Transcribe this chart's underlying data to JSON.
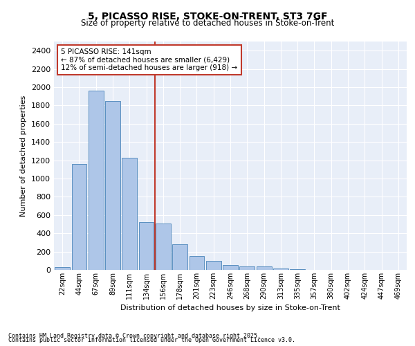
{
  "title1": "5, PICASSO RISE, STOKE-ON-TRENT, ST3 7GF",
  "title2": "Size of property relative to detached houses in Stoke-on-Trent",
  "xlabel": "Distribution of detached houses by size in Stoke-on-Trent",
  "ylabel": "Number of detached properties",
  "categories": [
    "22sqm",
    "44sqm",
    "67sqm",
    "89sqm",
    "111sqm",
    "134sqm",
    "156sqm",
    "178sqm",
    "201sqm",
    "223sqm",
    "246sqm",
    "268sqm",
    "290sqm",
    "313sqm",
    "335sqm",
    "357sqm",
    "380sqm",
    "402sqm",
    "424sqm",
    "447sqm",
    "469sqm"
  ],
  "values": [
    30,
    1160,
    1960,
    1850,
    1230,
    520,
    510,
    280,
    155,
    95,
    50,
    38,
    35,
    12,
    5,
    3,
    2,
    2,
    2,
    2,
    2
  ],
  "bar_color_normal": "#aec6e8",
  "bar_edge_color": "#5a8fc0",
  "vline_index": 5,
  "annotation_title": "5 PICASSO RISE: 141sqm",
  "annotation_line1": "← 87% of detached houses are smaller (6,429)",
  "annotation_line2": "12% of semi-detached houses are larger (918) →",
  "ylim": [
    0,
    2500
  ],
  "yticks": [
    0,
    200,
    400,
    600,
    800,
    1000,
    1200,
    1400,
    1600,
    1800,
    2000,
    2200,
    2400
  ],
  "bg_color": "#e8eef8",
  "vline_color": "#c0392b",
  "annotation_box_color": "#c0392b",
  "footer1": "Contains HM Land Registry data © Crown copyright and database right 2025.",
  "footer2": "Contains public sector information licensed under the Open Government Licence v3.0."
}
